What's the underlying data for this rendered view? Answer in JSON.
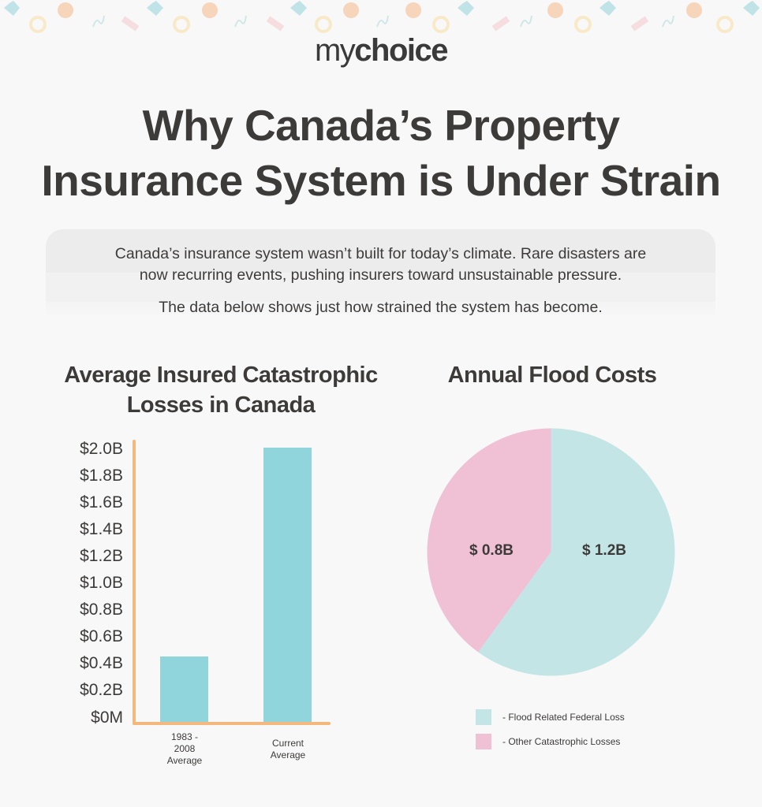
{
  "brand": {
    "logo_light": "my",
    "logo_bold": "choice"
  },
  "header": {
    "title_line1": "Why Canada’s Property",
    "title_line2": "Insurance System is Under Strain"
  },
  "intro": {
    "line1": "Canada’s insurance system wasn’t built for today’s climate. Rare disasters are",
    "line2": "now recurring events, pushing insurers toward unsustainable pressure.",
    "line3": "The data below shows just how strained the system has become."
  },
  "colors": {
    "background": "#f8f8f8",
    "text": "#3d3b3a",
    "axis": "#f4b77d",
    "bar": "#8fd5db",
    "pie_flood": "#c3e5e6",
    "pie_other": "#f0c0d5",
    "intro_box": "#ececec"
  },
  "chart_data": [
    {
      "type": "bar",
      "title": "Average Insured Catastrophic Losses in Canada",
      "title_line1": "Average Insured Catastrophic",
      "title_line2": "Losses in Canada",
      "categories": [
        "1983 - 2008 Average",
        "Current Average"
      ],
      "category_lines": [
        [
          "1983 -",
          "2008",
          "Average"
        ],
        [
          "Current",
          "Average"
        ]
      ],
      "values": [
        0.48,
        2.0
      ],
      "unit": "billion CAD",
      "xlabel": "",
      "ylabel": "",
      "ylim": [
        0,
        2.0
      ],
      "yticks": [
        "$0M",
        "$0.2B",
        "$0.4B",
        "$0.6B",
        "$0.8B",
        "$1.0B",
        "$1.2B",
        "$1.4B",
        "$1.6B",
        "$1.8B",
        "$2.0B"
      ],
      "grid": false
    },
    {
      "type": "pie",
      "title": "Annual Flood Costs",
      "labels": [
        "Flood Related Federal Loss",
        "Other Catastrophic Losses"
      ],
      "values": [
        1.2,
        0.8
      ],
      "value_labels": [
        "$ 1.2B",
        "$ 0.8B"
      ],
      "unit": "billion CAD",
      "legend": [
        "- Flood Related Federal Loss",
        "- Other Catastrophic Losses"
      ],
      "legend_position": "bottom"
    }
  ]
}
